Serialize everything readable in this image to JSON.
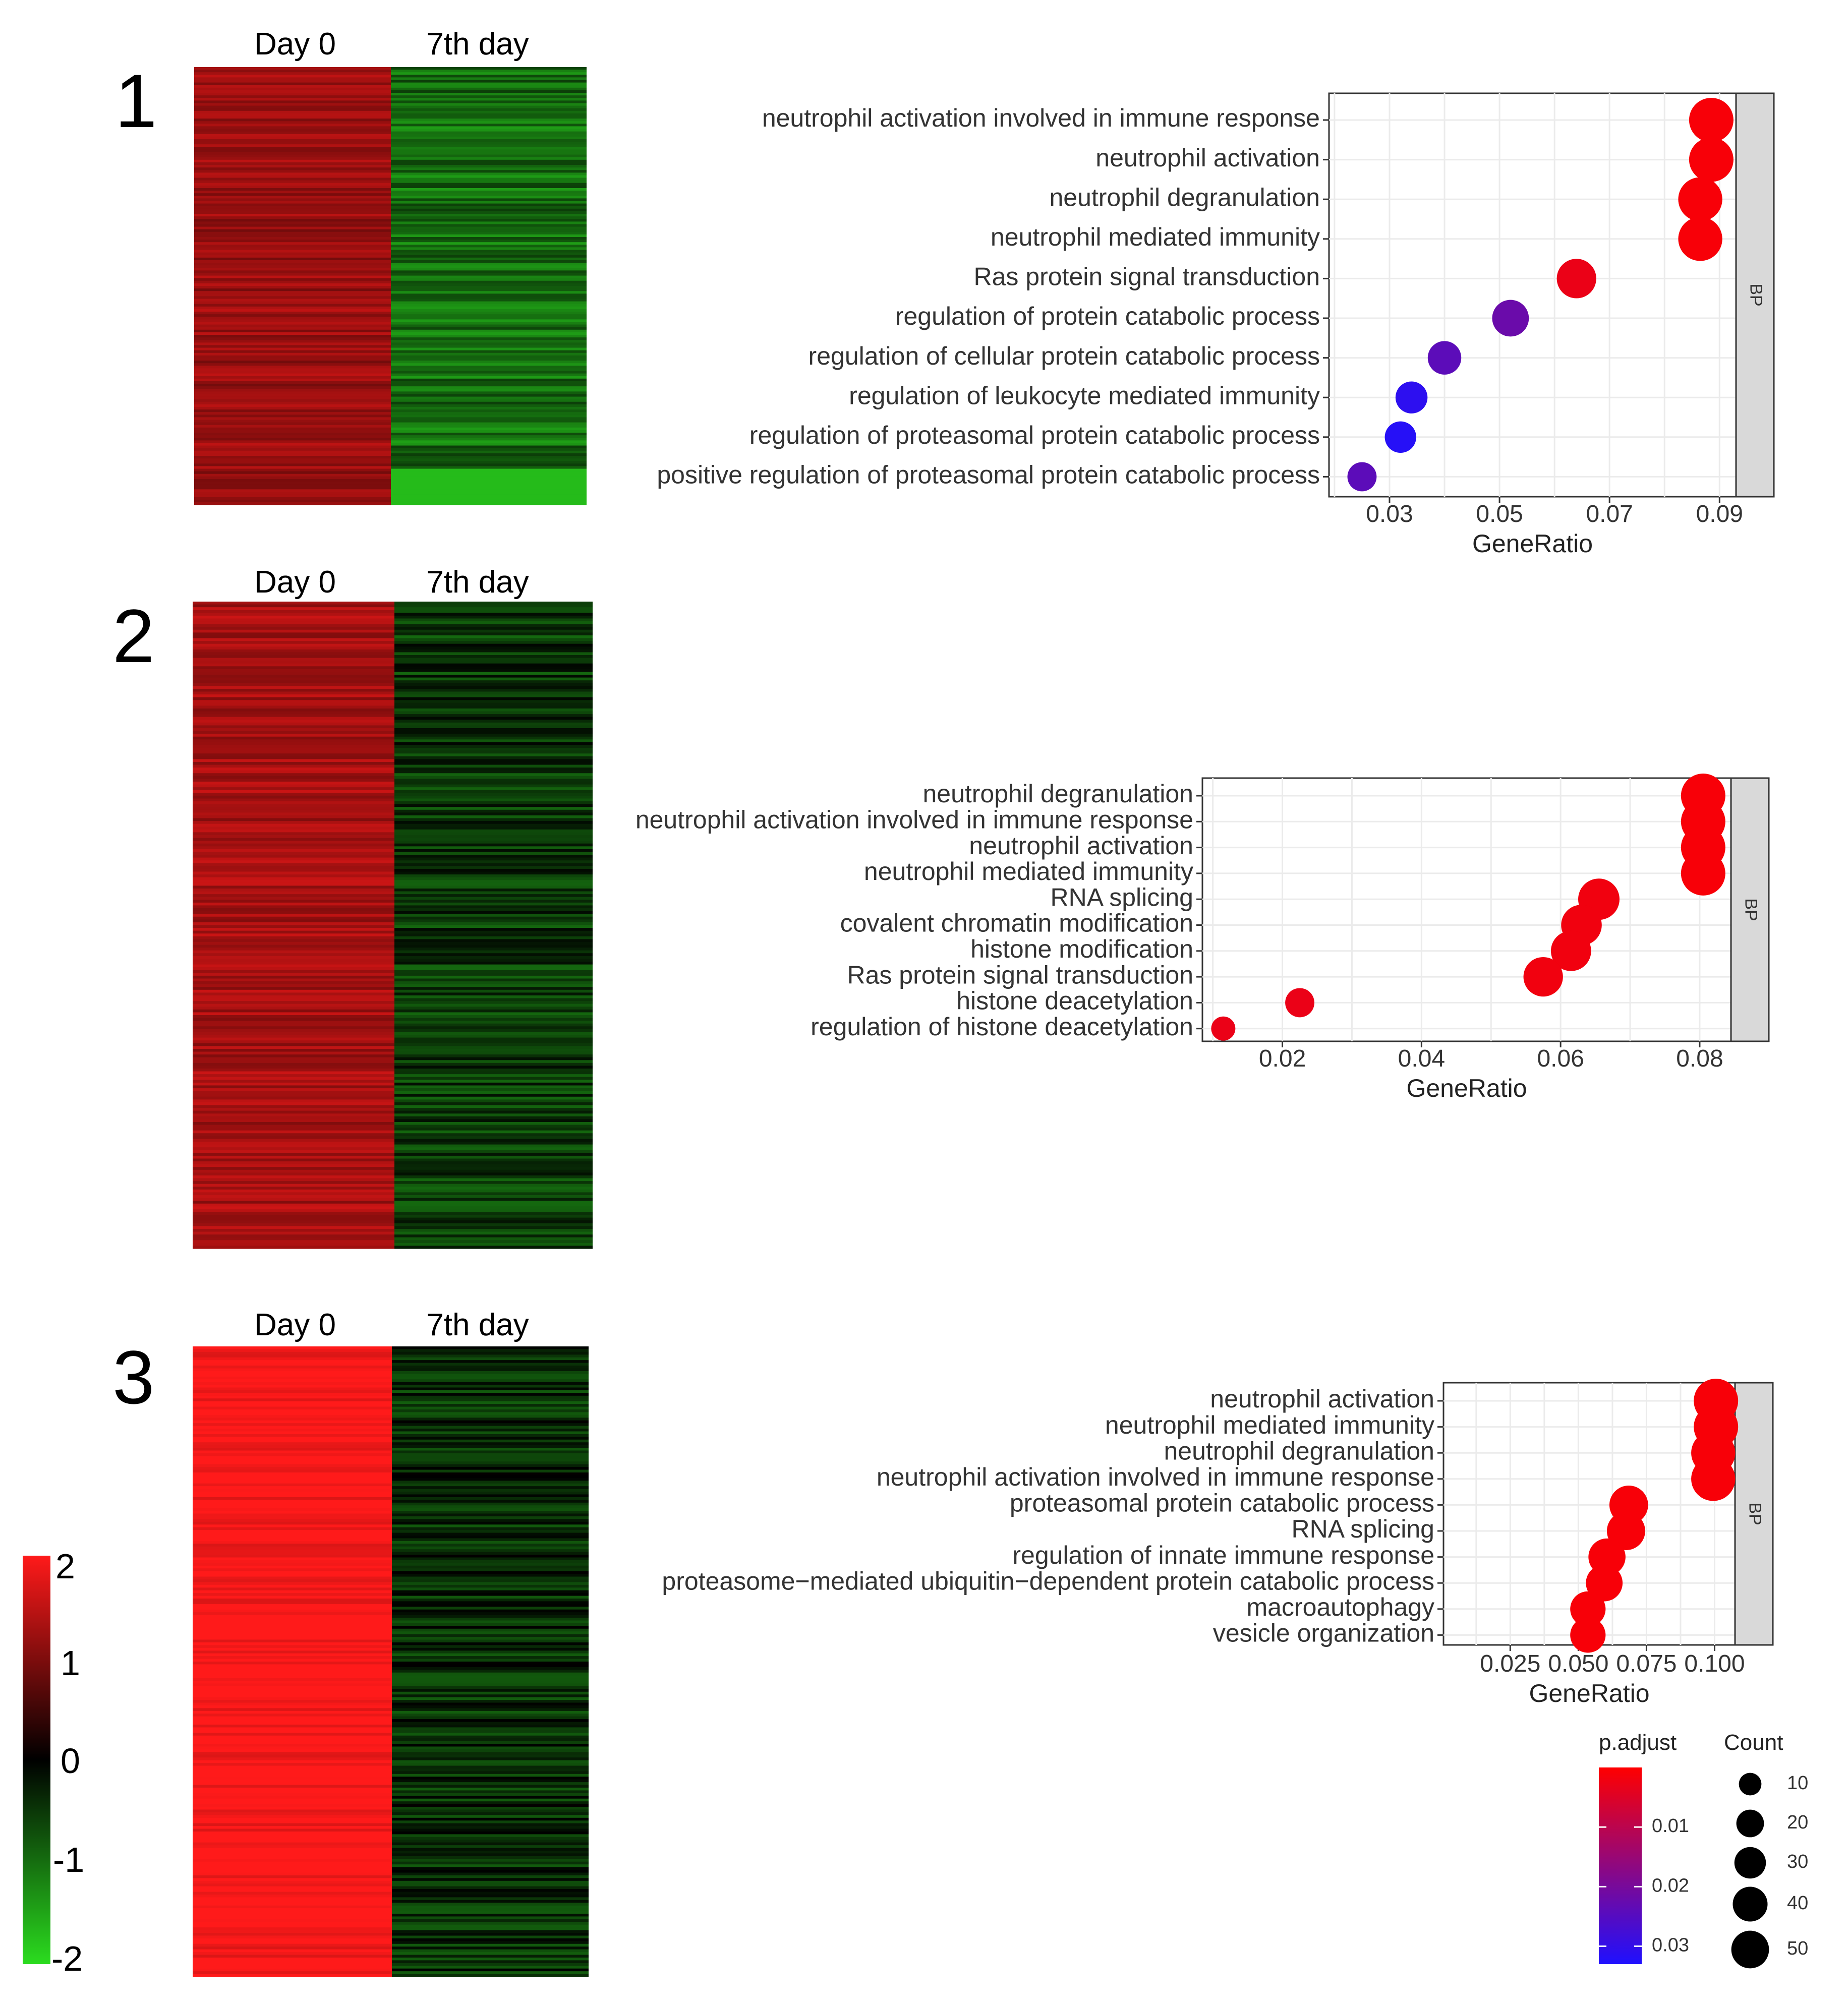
{
  "colors": {
    "heat_low": "#2bdc1f",
    "heat_mid": "#000000",
    "heat_high": "#ff1a1a",
    "padj_low": "#ff0000",
    "padj_high": "#1f10ff",
    "strip_fill": "#d9d9d9",
    "grid": "#ebebeb"
  },
  "heatmap_scale": {
    "labels": [
      "2",
      "1",
      "0",
      "-1",
      "-2"
    ],
    "min": -2,
    "max": 2
  },
  "legend": {
    "padj_title": "p.adjust",
    "padj_ticks": [
      "0.01",
      "0.02",
      "0.03"
    ],
    "padj_values": [
      0.01,
      0.02,
      0.03
    ],
    "padj_range": [
      0.0,
      0.033
    ],
    "count_title": "Count",
    "count_labels": [
      "10",
      "20",
      "30",
      "40",
      "50"
    ],
    "count_values": [
      10,
      20,
      30,
      40,
      50
    ]
  },
  "chart_data": [
    {
      "type": "heatmap",
      "panel": "1",
      "columns": [
        "Day 0",
        "7th day"
      ],
      "column_mean_values": [
        1.2,
        -1.0
      ],
      "scale": [
        -2,
        2
      ]
    },
    {
      "type": "scatter",
      "panel": "1",
      "facet": "BP",
      "xlabel": "GeneRatio",
      "xlim": [
        0.019,
        0.093
      ],
      "xticks": [
        0.03,
        0.05,
        0.07,
        0.09
      ],
      "xtick_labels": [
        "0.03",
        "0.05",
        "0.07",
        "0.09"
      ],
      "terms": [
        "neutrophil activation involved in immune response",
        "neutrophil activation",
        "neutrophil degranulation",
        "neutrophil mediated immunity",
        "Ras protein signal transduction",
        "regulation of protein catabolic process",
        "regulation of cellular protein catabolic process",
        "regulation of leukocyte mediated immunity",
        "regulation of proteasomal protein catabolic process",
        "positive regulation of proteasomal protein catabolic process"
      ],
      "gene_ratio": [
        0.0885,
        0.0885,
        0.0865,
        0.0865,
        0.064,
        0.052,
        0.04,
        0.034,
        0.032,
        0.025
      ],
      "count": [
        50,
        50,
        49,
        49,
        36,
        29,
        22,
        19,
        18,
        14
      ],
      "p_adjust": [
        0.001,
        0.001,
        0.001,
        0.001,
        0.003,
        0.022,
        0.024,
        0.031,
        0.032,
        0.024
      ]
    },
    {
      "type": "heatmap",
      "panel": "2",
      "columns": [
        "Day 0",
        "7th day"
      ],
      "column_mean_values": [
        1.3,
        -0.5
      ],
      "scale": [
        -2,
        2
      ]
    },
    {
      "type": "scatter",
      "panel": "2",
      "facet": "BP",
      "xlabel": "GeneRatio",
      "xlim": [
        0.0085,
        0.0845
      ],
      "xticks": [
        0.02,
        0.04,
        0.06,
        0.08
      ],
      "xtick_labels": [
        "0.02",
        "0.04",
        "0.06",
        "0.08"
      ],
      "terms": [
        "neutrophil degranulation",
        "neutrophil activation involved in immune response",
        "neutrophil activation",
        "neutrophil mediated immunity",
        "RNA splicing",
        "covalent chromatin modification",
        "histone modification",
        "Ras protein signal transduction",
        "histone deacetylation",
        "regulation of histone deacetylation"
      ],
      "gene_ratio": [
        0.0805,
        0.0805,
        0.0805,
        0.0805,
        0.0655,
        0.063,
        0.0615,
        0.0575,
        0.0225,
        0.0115
      ],
      "count": [
        50,
        50,
        50,
        50,
        41,
        39,
        38,
        36,
        14,
        7
      ],
      "p_adjust": [
        0.001,
        0.001,
        0.001,
        0.001,
        0.002,
        0.002,
        0.002,
        0.002,
        0.003,
        0.003
      ]
    },
    {
      "type": "heatmap",
      "panel": "3",
      "columns": [
        "Day 0",
        "7th day"
      ],
      "column_mean_values": [
        2.0,
        -0.4
      ],
      "scale": [
        -2,
        2
      ]
    },
    {
      "type": "scatter",
      "panel": "3",
      "facet": "BP",
      "xlabel": "GeneRatio",
      "xlim": [
        0.0005,
        0.1075
      ],
      "xticks": [
        0.025,
        0.05,
        0.075,
        0.1
      ],
      "xtick_labels": [
        "0.025",
        "0.050",
        "0.075",
        "0.100"
      ],
      "terms": [
        "neutrophil activation",
        "neutrophil mediated immunity",
        "neutrophil degranulation",
        "neutrophil activation involved in immune response",
        "proteasomal protein catabolic process",
        "RNA splicing",
        "regulation of innate immune response",
        "proteasome−mediated ubiquitin−dependent protein catabolic process",
        "macroautophagy",
        "vesicle organization"
      ],
      "gene_ratio": [
        0.1005,
        0.1005,
        0.0995,
        0.0995,
        0.0685,
        0.0675,
        0.0605,
        0.0595,
        0.0535,
        0.0535
      ],
      "count": [
        50,
        50,
        49,
        49,
        34,
        33,
        30,
        29,
        26,
        26
      ],
      "p_adjust": [
        0.001,
        0.001,
        0.001,
        0.001,
        0.001,
        0.001,
        0.001,
        0.001,
        0.001,
        0.001
      ]
    }
  ]
}
